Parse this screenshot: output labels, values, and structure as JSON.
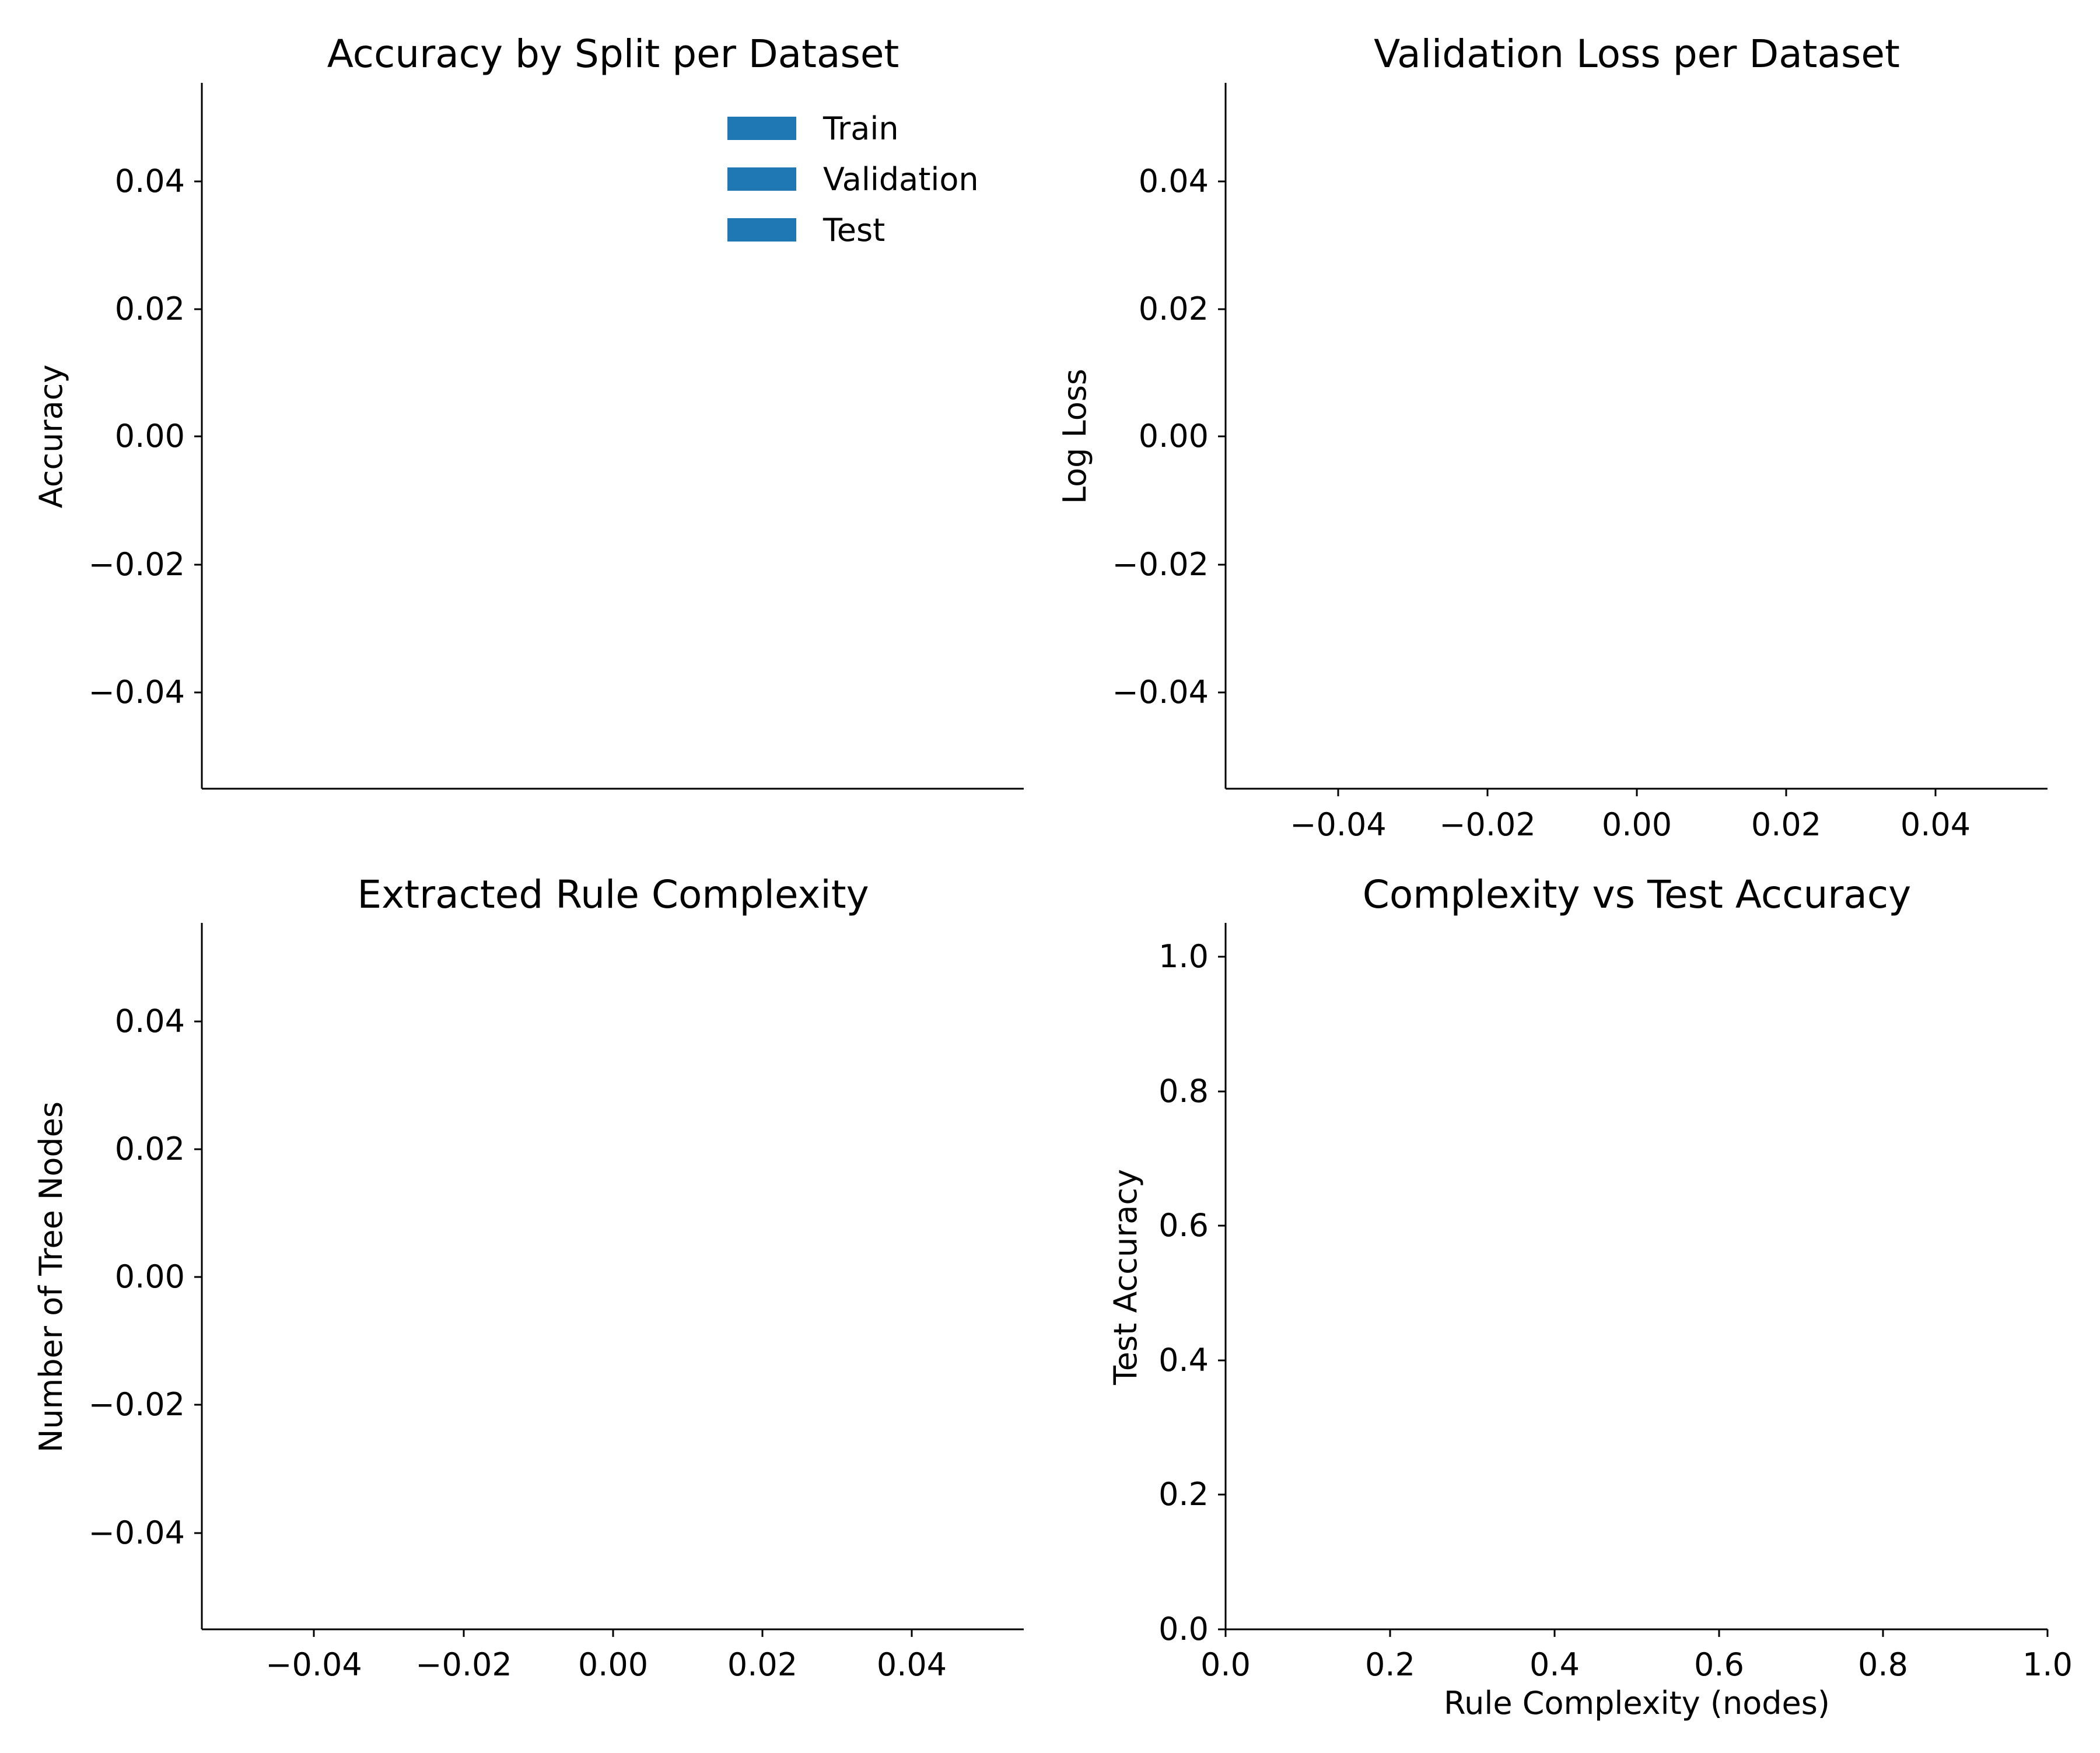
{
  "colors": {
    "bar": "#1f77b4",
    "axis": "#000000",
    "background": "#ffffff"
  },
  "chart_data": [
    {
      "type": "bar",
      "title": "Accuracy by Split per Dataset",
      "xlabel": "",
      "ylabel": "Accuracy",
      "categories": [],
      "series": [
        {
          "name": "Train",
          "values": []
        },
        {
          "name": "Validation",
          "values": []
        },
        {
          "name": "Test",
          "values": []
        }
      ],
      "ylim": [
        -0.055,
        0.055
      ],
      "yticks": [
        "0.04",
        "0.02",
        "0.00",
        "−0.02",
        "−0.04"
      ],
      "xticks": [],
      "legend": "top-right",
      "grid": false
    },
    {
      "type": "line",
      "title": "Validation Loss per Dataset",
      "xlabel": "",
      "ylabel": "Log Loss",
      "series": [],
      "xlim": [
        -0.055,
        0.055
      ],
      "ylim": [
        -0.055,
        0.055
      ],
      "xticks": [
        "−0.04",
        "−0.02",
        "0.00",
        "0.02",
        "0.04"
      ],
      "yticks": [
        "0.04",
        "0.02",
        "0.00",
        "−0.02",
        "−0.04"
      ],
      "grid": false
    },
    {
      "type": "bar",
      "title": "Extracted Rule Complexity",
      "xlabel": "",
      "ylabel": "Number of Tree Nodes",
      "categories": [],
      "values": [],
      "xlim": [
        -0.055,
        0.055
      ],
      "ylim": [
        -0.055,
        0.055
      ],
      "xticks": [
        "−0.04",
        "−0.02",
        "0.00",
        "0.02",
        "0.04"
      ],
      "yticks": [
        "0.04",
        "0.02",
        "0.00",
        "−0.02",
        "−0.04"
      ],
      "grid": false
    },
    {
      "type": "scatter",
      "title": "Complexity vs Test Accuracy",
      "xlabel": "Rule Complexity (nodes)",
      "ylabel": "Test Accuracy",
      "x": [],
      "y": [],
      "xlim": [
        0,
        1.05
      ],
      "ylim": [
        0,
        1.05
      ],
      "xticks": [
        "0.0",
        "0.2",
        "0.4",
        "0.6",
        "0.8",
        "1.0"
      ],
      "yticks": [
        "1.0",
        "0.8",
        "0.6",
        "0.4",
        "0.2",
        "0.0"
      ],
      "grid": false
    }
  ]
}
